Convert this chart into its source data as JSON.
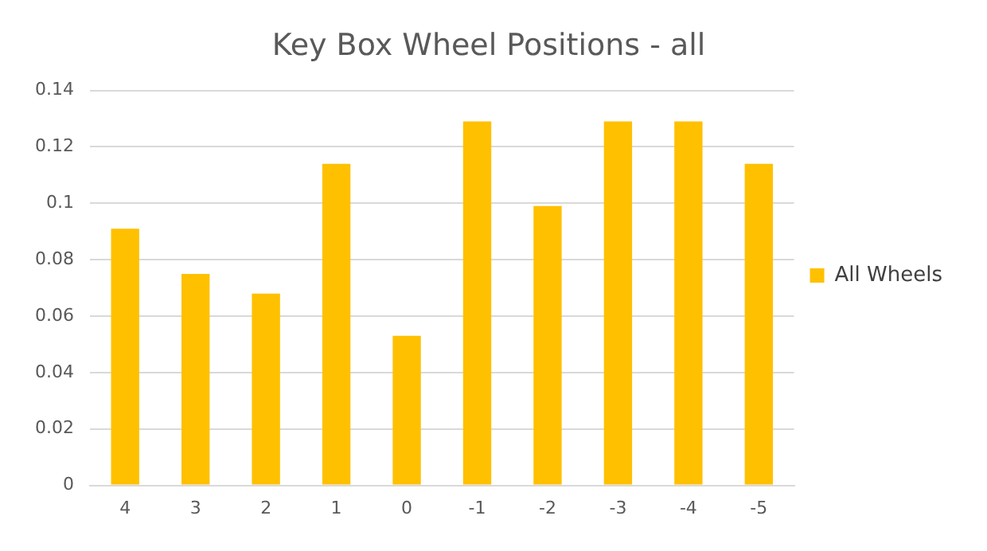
{
  "chart_data": {
    "type": "bar",
    "title": "Key Box Wheel Positions - all",
    "categories": [
      "4",
      "3",
      "2",
      "1",
      "0",
      "-1",
      "-2",
      "-3",
      "-4",
      "-5"
    ],
    "series": [
      {
        "name": "All Wheels",
        "color": "#ffc000",
        "values": [
          0.091,
          0.075,
          0.068,
          0.114,
          0.053,
          0.129,
          0.099,
          0.129,
          0.129,
          0.114
        ]
      }
    ],
    "ylim": [
      0,
      0.14
    ],
    "yticks": [
      0,
      0.02,
      0.04,
      0.06,
      0.08,
      0.1,
      0.12,
      0.14
    ],
    "grid": "y",
    "legend": "right"
  }
}
